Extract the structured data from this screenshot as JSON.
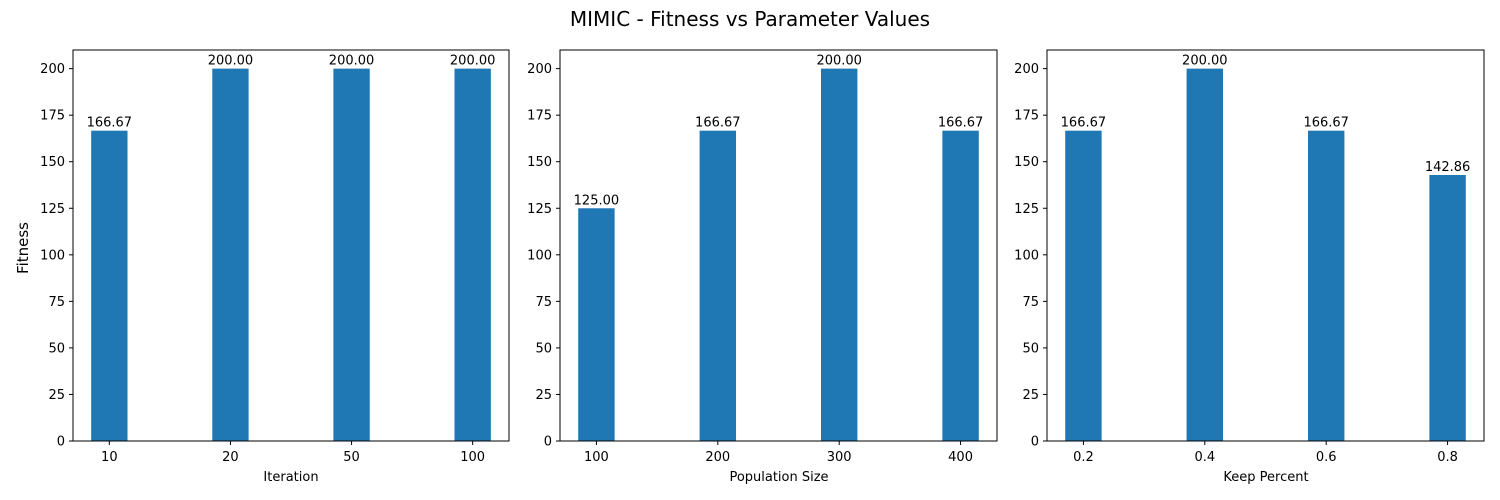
{
  "figure": {
    "title": "MIMIC - Fitness vs Parameter Values",
    "ylabel": "Fitness"
  },
  "colors": {
    "bar": "#1f77b4"
  },
  "chart_data": [
    {
      "type": "bar",
      "categories": [
        "10",
        "20",
        "50",
        "100"
      ],
      "values": [
        166.67,
        200.0,
        200.0,
        200.0
      ],
      "data_labels": [
        "166.67",
        "200.00",
        "200.00",
        "200.00"
      ],
      "title": "",
      "xlabel": "Iteration",
      "ylabel": "Fitness",
      "ylim": [
        0,
        210
      ],
      "yticks": [
        "0",
        "25",
        "50",
        "75",
        "100",
        "125",
        "150",
        "175",
        "200"
      ],
      "grid": false
    },
    {
      "type": "bar",
      "categories": [
        "100",
        "200",
        "300",
        "400"
      ],
      "values": [
        125.0,
        166.67,
        200.0,
        166.67
      ],
      "data_labels": [
        "125.00",
        "166.67",
        "200.00",
        "166.67"
      ],
      "title": "",
      "xlabel": "Population Size",
      "ylabel": "",
      "ylim": [
        0,
        210
      ],
      "yticks": [
        "0",
        "25",
        "50",
        "75",
        "100",
        "125",
        "150",
        "175",
        "200"
      ],
      "grid": false
    },
    {
      "type": "bar",
      "categories": [
        "0.2",
        "0.4",
        "0.6",
        "0.8"
      ],
      "values": [
        166.67,
        200.0,
        166.67,
        142.86
      ],
      "data_labels": [
        "166.67",
        "200.00",
        "166.67",
        "142.86"
      ],
      "title": "",
      "xlabel": "Keep Percent",
      "ylabel": "",
      "ylim": [
        0,
        210
      ],
      "yticks": [
        "0",
        "25",
        "50",
        "75",
        "100",
        "125",
        "150",
        "175",
        "200"
      ],
      "grid": false
    }
  ]
}
